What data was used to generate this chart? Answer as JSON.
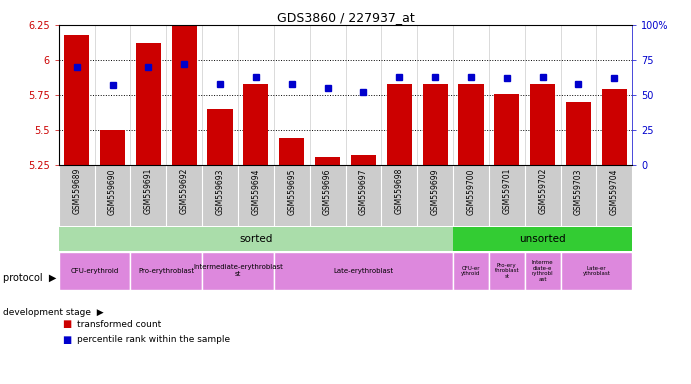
{
  "title": "GDS3860 / 227937_at",
  "samples": [
    "GSM559689",
    "GSM559690",
    "GSM559691",
    "GSM559692",
    "GSM559693",
    "GSM559694",
    "GSM559695",
    "GSM559696",
    "GSM559697",
    "GSM559698",
    "GSM559699",
    "GSM559700",
    "GSM559701",
    "GSM559702",
    "GSM559703",
    "GSM559704"
  ],
  "bar_values": [
    6.18,
    5.5,
    6.12,
    6.27,
    5.65,
    5.83,
    5.44,
    5.31,
    5.32,
    5.83,
    5.83,
    5.83,
    5.76,
    5.83,
    5.7,
    5.79
  ],
  "percentile_values": [
    70,
    57,
    70,
    72,
    58,
    63,
    58,
    55,
    52,
    63,
    63,
    63,
    62,
    63,
    58,
    62
  ],
  "ylim_left": [
    5.25,
    6.25
  ],
  "ylim_right": [
    0,
    100
  ],
  "yticks_left": [
    5.25,
    5.5,
    5.75,
    6.0,
    6.25
  ],
  "yticks_right": [
    0,
    25,
    50,
    75,
    100
  ],
  "ytick_labels_left": [
    "5.25",
    "5.5",
    "5.75",
    "6",
    "6.25"
  ],
  "ytick_labels_right": [
    "0",
    "25",
    "50",
    "75",
    "100%"
  ],
  "bar_color": "#CC0000",
  "marker_color": "#0000CC",
  "bg_color": "#FFFFFF",
  "tick_label_color_left": "#CC0000",
  "tick_label_color_right": "#0000CC",
  "xtick_bg_color": "#CCCCCC",
  "protocol_sorted_color": "#AADDAA",
  "protocol_unsorted_color": "#33CC33",
  "dev_stage_color": "#DD88DD",
  "sorted_count": 11,
  "total_count": 16,
  "dev_stages_sorted": [
    {
      "label": "CFU-erythroid",
      "start": 0,
      "end": 2
    },
    {
      "label": "Pro-erythroblast",
      "start": 2,
      "end": 4
    },
    {
      "label": "Intermediate-erythroblast\nst",
      "start": 4,
      "end": 6
    },
    {
      "label": "Late-erythroblast",
      "start": 6,
      "end": 11
    }
  ],
  "dev_stages_unsorted": [
    {
      "label": "CFU-er\nythroid",
      "start": 11,
      "end": 12
    },
    {
      "label": "Pro-ery\nthroblast\nst",
      "start": 12,
      "end": 13
    },
    {
      "label": "Interme\ndiate-e\nrythrobl\nast",
      "start": 13,
      "end": 14
    },
    {
      "label": "Late-er\nythroblast",
      "start": 14,
      "end": 16
    }
  ],
  "legend_bar_label": "transformed count",
  "legend_marker_label": "percentile rank within the sample",
  "protocol_label": "protocol",
  "dev_stage_label": "development stage"
}
